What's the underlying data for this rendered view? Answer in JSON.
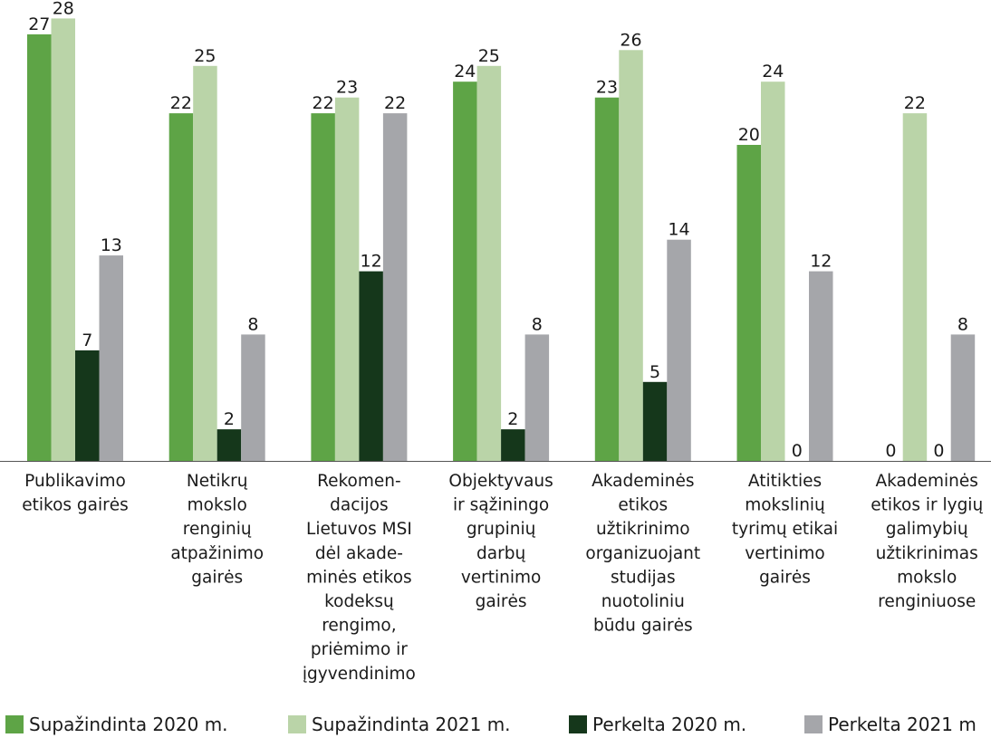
{
  "chart_data": {
    "type": "bar",
    "title": "",
    "xlabel": "",
    "ylabel": "",
    "ylim": [
      0,
      28
    ],
    "grid": false,
    "legend_position": "bottom",
    "categories": [
      [
        "Publikavimo",
        "etikos gairės"
      ],
      [
        "Netikrų",
        "mokslo",
        "renginių",
        "atpažinimo",
        "gairės"
      ],
      [
        "Rekomen-",
        "dacijos",
        "Lietuvos MSI",
        "dėl akade-",
        "minės etikos",
        "kodeksų",
        "rengimo,",
        "priėmimo ir",
        "įgyvendinimo"
      ],
      [
        "Objektyvaus",
        "ir sąžiningo",
        "grupinių",
        "darbų",
        "vertinimo",
        "gairės"
      ],
      [
        "Akademinės",
        "etikos",
        "užtikrinimo",
        "organizuojant",
        "studijas",
        "nuotoliniu",
        "būdu gairės"
      ],
      [
        "Atitikties",
        "mokslinių",
        "tyrimų etikai",
        "vertinimo",
        "gairės"
      ],
      [
        "Akademinės",
        "etikos ir lygių",
        "galimybių",
        "užtikrinimas",
        "mokslo",
        "renginiuose"
      ]
    ],
    "series": [
      {
        "name": "Supažindinta 2020 m.",
        "color": "#5ea446",
        "values": [
          27,
          22,
          22,
          24,
          23,
          20,
          0
        ]
      },
      {
        "name": "Supažindinta 2021 m.",
        "color": "#bad4a8",
        "values": [
          28,
          25,
          23,
          25,
          26,
          24,
          22
        ]
      },
      {
        "name": "Perkelta 2020 m.",
        "color": "#15371b",
        "values": [
          7,
          2,
          12,
          2,
          5,
          0,
          0
        ]
      },
      {
        "name": "Perkelta 2021 m",
        "color": "#a5a6aa",
        "values": [
          13,
          8,
          22,
          8,
          14,
          12,
          8
        ]
      }
    ]
  }
}
